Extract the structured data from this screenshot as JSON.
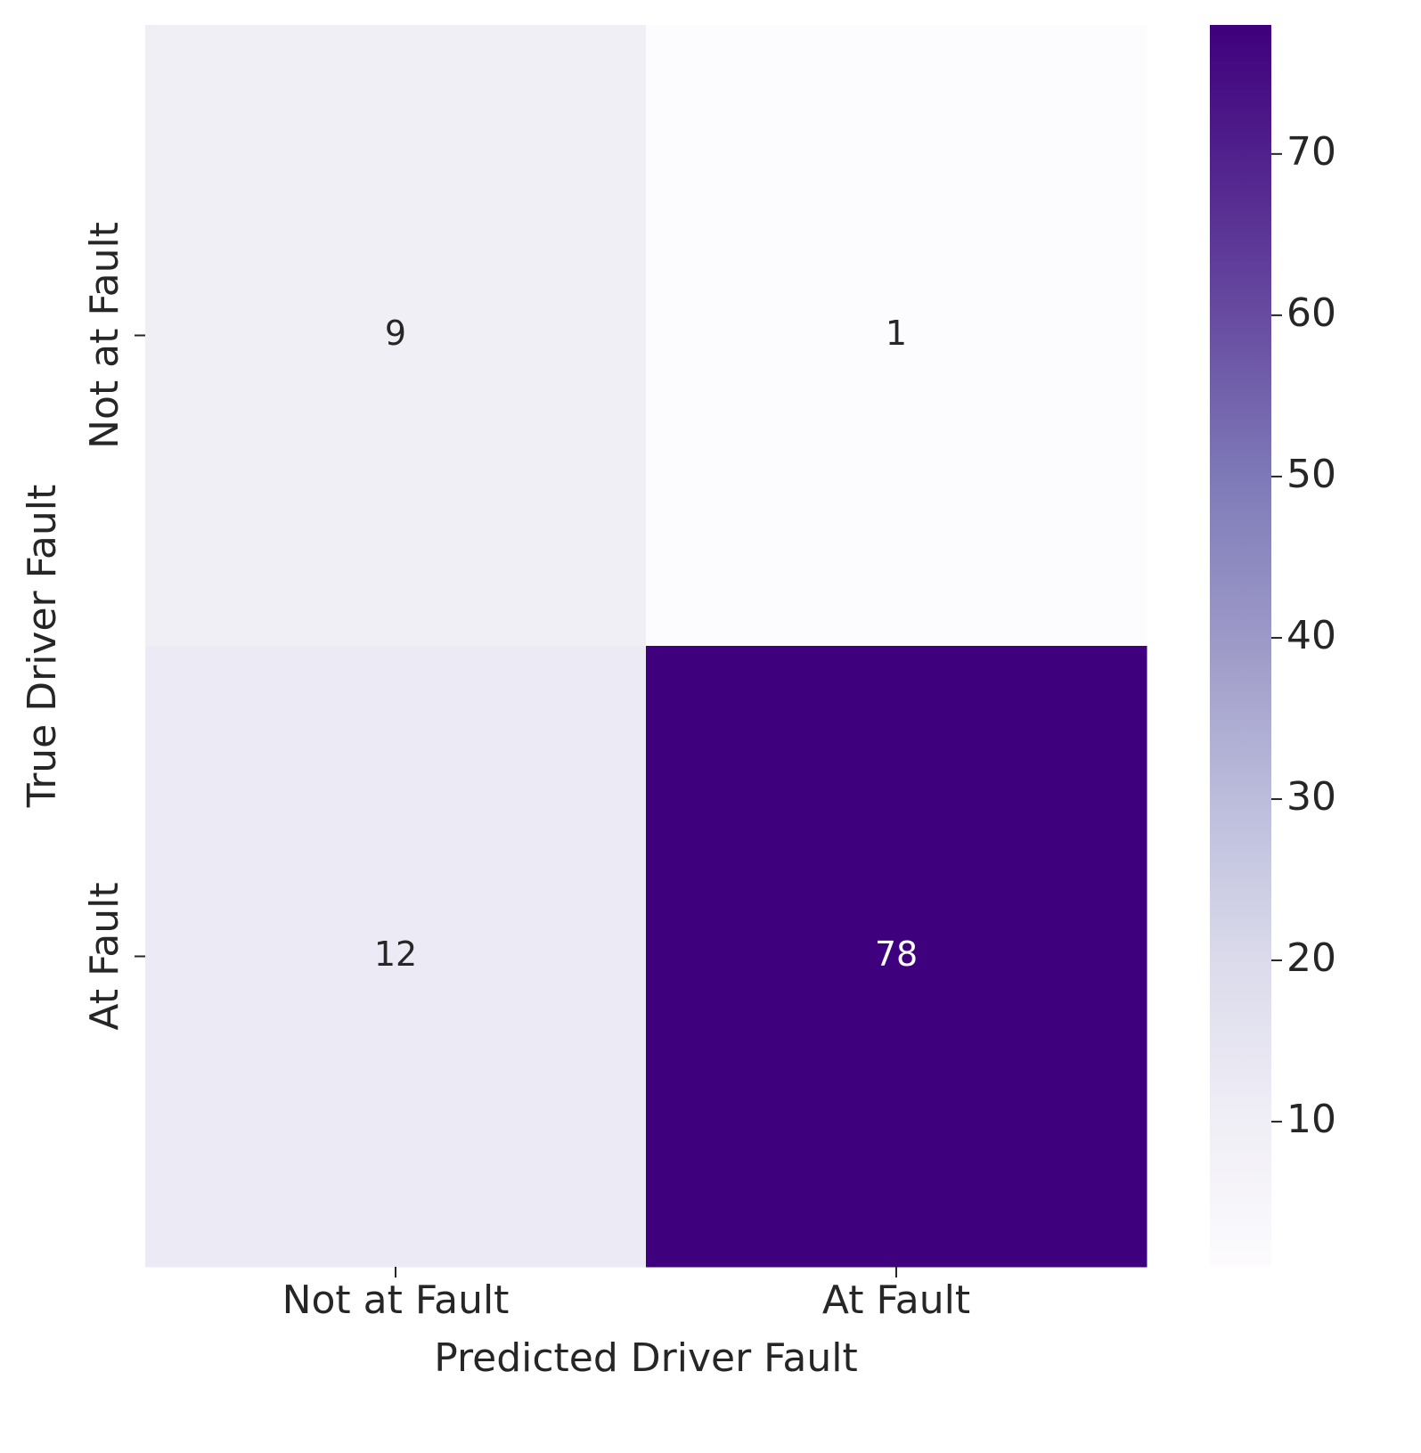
{
  "chart_data": {
    "type": "heatmap",
    "xlabel": "Predicted Driver Fault",
    "ylabel": "True Driver Fault",
    "x_categories": [
      "Not at Fault",
      "At Fault"
    ],
    "y_categories": [
      "Not at Fault",
      "At Fault"
    ],
    "values": [
      [
        9,
        1
      ],
      [
        12,
        78
      ]
    ],
    "colormap": [
      "#fcfbfd",
      "#efedf5",
      "#dadaeb",
      "#bcbddc",
      "#9e9ac8",
      "#807dba",
      "#6a51a3",
      "#54278f",
      "#3f007d"
    ],
    "colorbar_lim": [
      1,
      78
    ],
    "colorbar_ticks": [
      10,
      20,
      30,
      40,
      50,
      60,
      70
    ]
  }
}
